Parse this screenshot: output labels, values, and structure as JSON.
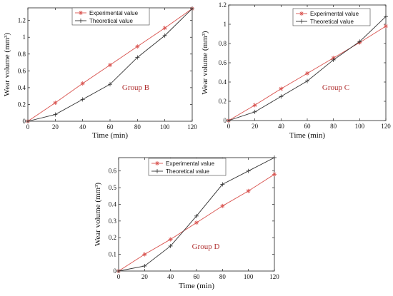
{
  "chart_data": [
    {
      "type": "line",
      "annotation": "Group B",
      "xlabel": "Time (min)",
      "ylabel": "Wear volume (mm³)",
      "x": [
        0,
        20,
        40,
        60,
        80,
        100,
        120
      ],
      "xlim": [
        0,
        120
      ],
      "ylim": [
        0,
        1.35
      ],
      "xticks": [
        0,
        20,
        40,
        60,
        80,
        100,
        120
      ],
      "yticks": [
        0,
        0.2,
        0.4,
        0.6,
        0.8,
        1,
        1.2
      ],
      "legend_position": "top-left",
      "series": [
        {
          "name": "Experimental value",
          "color": "#d9534f",
          "marker": "asterisk",
          "values": [
            0,
            0.22,
            0.45,
            0.67,
            0.89,
            1.11,
            1.34
          ]
        },
        {
          "name": "Theoretical value",
          "color": "#333333",
          "marker": "plus",
          "values": [
            0,
            0.08,
            0.26,
            0.44,
            0.76,
            1.02,
            1.34
          ]
        }
      ]
    },
    {
      "type": "line",
      "annotation": "Group C",
      "xlabel": "Time (min)",
      "ylabel": "Wear volume (mm³)",
      "x": [
        0,
        20,
        40,
        60,
        80,
        100,
        120
      ],
      "xlim": [
        0,
        120
      ],
      "ylim": [
        0,
        1.2
      ],
      "xticks": [
        0,
        20,
        40,
        60,
        80,
        100,
        120
      ],
      "yticks": [
        0,
        0.2,
        0.4,
        0.6,
        0.8,
        1,
        1.2
      ],
      "legend_position": "top-right",
      "series": [
        {
          "name": "Experimental value",
          "color": "#d9534f",
          "marker": "asterisk",
          "values": [
            0,
            0.16,
            0.33,
            0.49,
            0.65,
            0.81,
            0.98
          ]
        },
        {
          "name": "Theoretical value",
          "color": "#333333",
          "marker": "plus",
          "values": [
            0,
            0.09,
            0.25,
            0.41,
            0.63,
            0.82,
            1.08
          ]
        }
      ]
    },
    {
      "type": "line",
      "annotation": "Group D",
      "xlabel": "Time (min)",
      "ylabel": "Wear volume (mm³)",
      "x": [
        0,
        20,
        40,
        60,
        80,
        100,
        120
      ],
      "xlim": [
        0,
        120
      ],
      "ylim": [
        0,
        0.68
      ],
      "xticks": [
        0,
        20,
        40,
        60,
        80,
        100,
        120
      ],
      "yticks": [
        0,
        0.1,
        0.2,
        0.3,
        0.4,
        0.5,
        0.6
      ],
      "legend_position": "top-right",
      "series": [
        {
          "name": "Experimental value",
          "color": "#d9534f",
          "marker": "asterisk",
          "values": [
            0,
            0.1,
            0.19,
            0.29,
            0.39,
            0.48,
            0.58
          ]
        },
        {
          "name": "Theoretical value",
          "color": "#333333",
          "marker": "plus",
          "values": [
            0,
            0.03,
            0.15,
            0.33,
            0.52,
            0.6,
            0.68
          ]
        }
      ]
    }
  ]
}
